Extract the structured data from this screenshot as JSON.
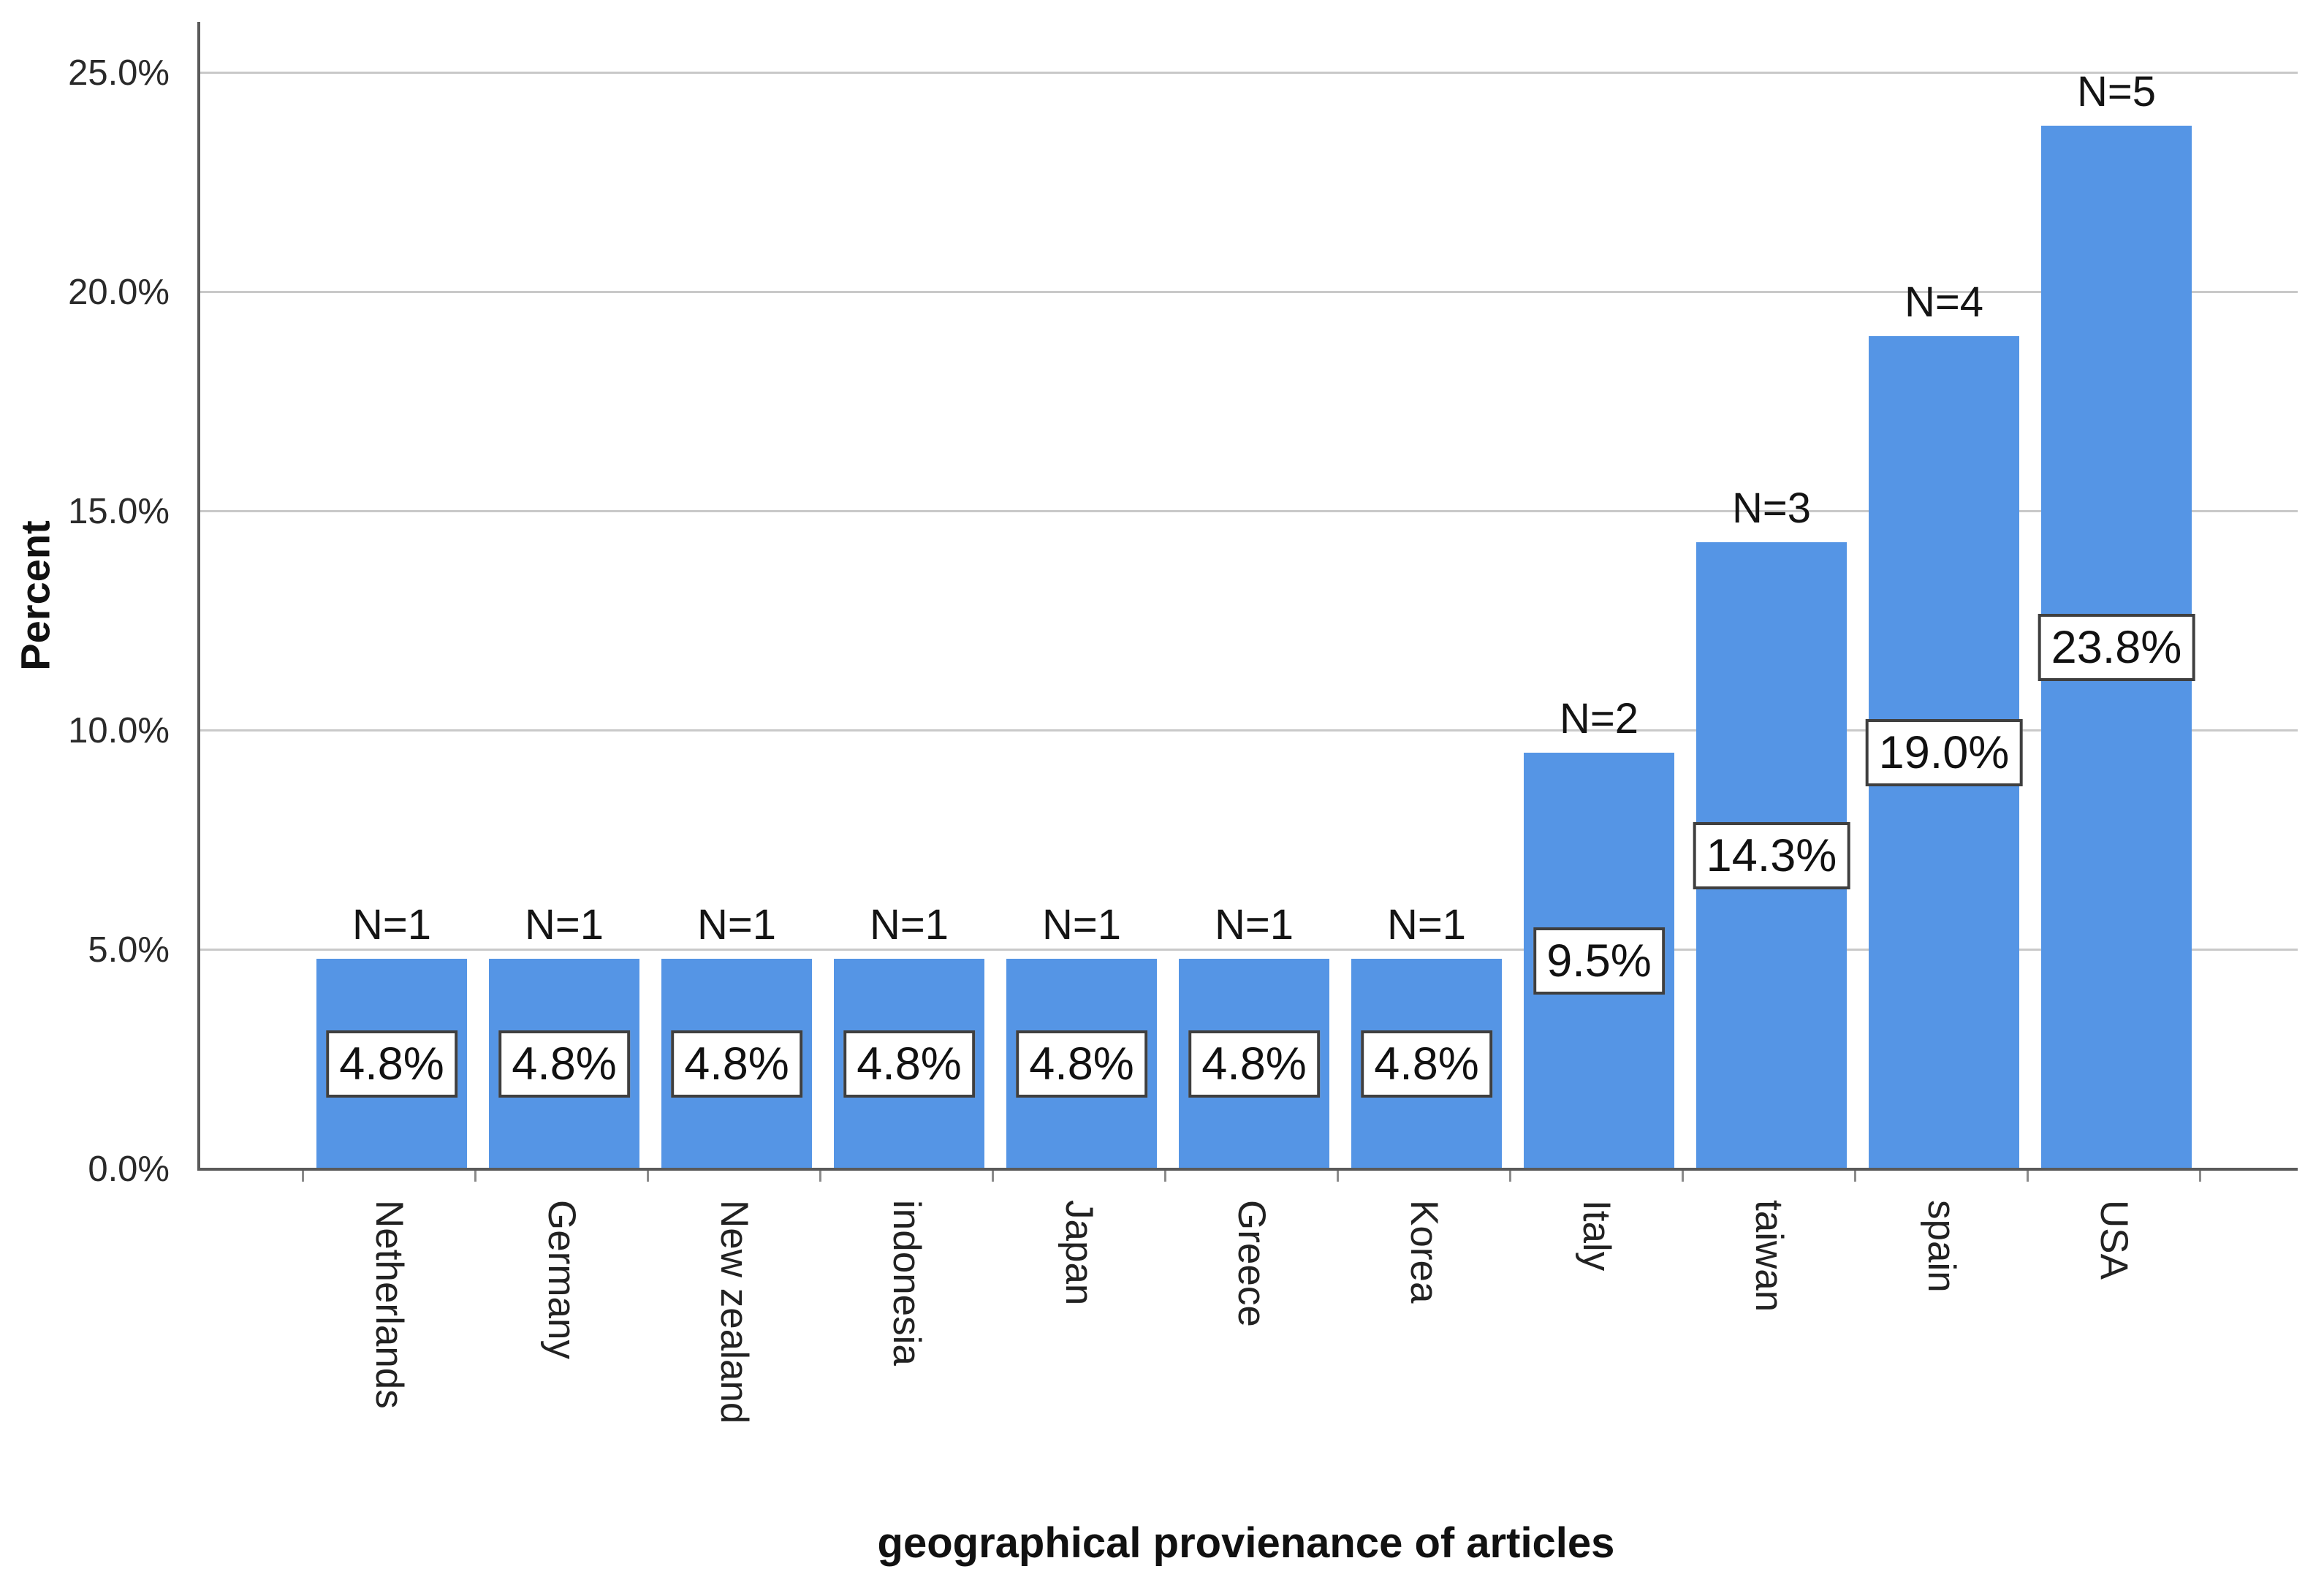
{
  "chart": {
    "background_color": "#ffffff",
    "bar_color": "#5595E5",
    "gridline_color": "#c9c9c9",
    "axis_line_color": "#5a5a5a",
    "value_box_border_color": "#3f3f3f",
    "y_axis": {
      "title": "Percent",
      "tick_labels": [
        "0.0%",
        "5.0%",
        "10.0%",
        "15.0%",
        "20.0%",
        "25.0%"
      ],
      "min": 0,
      "max": 25,
      "grid_step": 5
    },
    "x_axis": {
      "title": "geographical provienance of articles"
    }
  },
  "chart_data": {
    "type": "bar",
    "title": "",
    "xlabel": "geographical provienance of articles",
    "ylabel": "Percent",
    "ylim": [
      0,
      25
    ],
    "grid": true,
    "legend_position": "none",
    "categories": [
      "Netherlands",
      "Germany",
      "New zealand",
      "indonesia",
      "Japan",
      "Greece",
      "Korea",
      "Italy",
      "taiwan",
      "spain",
      "USA"
    ],
    "values": [
      4.8,
      4.8,
      4.8,
      4.8,
      4.8,
      4.8,
      4.8,
      9.5,
      14.3,
      19.0,
      23.8
    ],
    "counts": [
      "N=1",
      "N=1",
      "N=1",
      "N=1",
      "N=1",
      "N=1",
      "N=1",
      "N=2",
      "N=3",
      "N=4",
      "N=5"
    ],
    "value_labels": [
      "4.8%",
      "4.8%",
      "4.8%",
      "4.8%",
      "4.8%",
      "4.8%",
      "4.8%",
      "9.5%",
      "14.3%",
      "19.0%",
      "23.8%"
    ]
  }
}
